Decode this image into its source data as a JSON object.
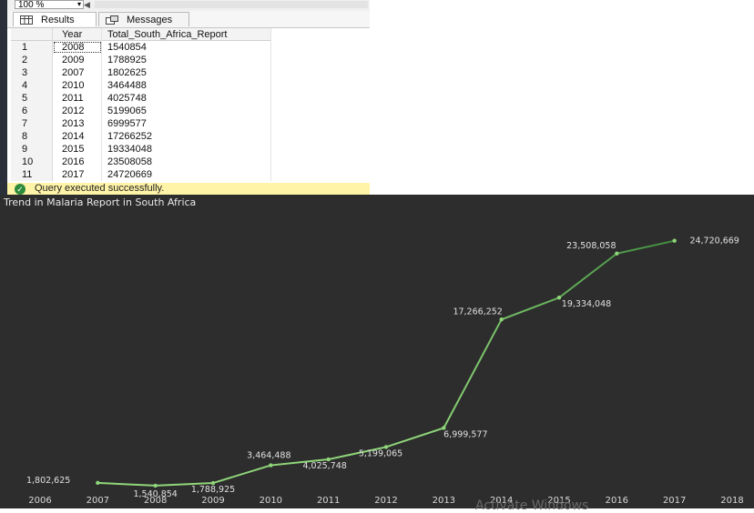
{
  "query_window": {
    "zoom_value": "100 %",
    "tabs": [
      {
        "label": "Results",
        "icon": "grid-icon"
      },
      {
        "label": "Messages",
        "icon": "messages-icon"
      }
    ],
    "grid": {
      "columns": [
        "Year",
        "Total_South_Africa_Report"
      ],
      "rows": [
        {
          "n": "1",
          "year": "2008",
          "total": "1540854"
        },
        {
          "n": "2",
          "year": "2009",
          "total": "1788925"
        },
        {
          "n": "3",
          "year": "2007",
          "total": "1802625"
        },
        {
          "n": "4",
          "year": "2010",
          "total": "3464488"
        },
        {
          "n": "5",
          "year": "2011",
          "total": "4025748"
        },
        {
          "n": "6",
          "year": "2012",
          "total": "5199065"
        },
        {
          "n": "7",
          "year": "2013",
          "total": "6999577"
        },
        {
          "n": "8",
          "year": "2014",
          "total": "17266252"
        },
        {
          "n": "9",
          "year": "2015",
          "total": "19334048"
        },
        {
          "n": "10",
          "year": "2016",
          "total": "23508058"
        },
        {
          "n": "11",
          "year": "2017",
          "total": "24720669"
        }
      ]
    },
    "status": {
      "text": "Query executed successfully.",
      "icon": "check-circle-icon",
      "color": "#fff4a8"
    }
  },
  "chart_data": {
    "type": "line",
    "title": "Trend in Malaria Report in South Africa",
    "x_ticks": [
      "2006",
      "2007",
      "2008",
      "2009",
      "2010",
      "2011",
      "2012",
      "2013",
      "2014",
      "2015",
      "2016",
      "2017",
      "2018"
    ],
    "xlim": [
      2006,
      2018
    ],
    "ylim": [
      500000,
      26500000
    ],
    "series": [
      {
        "x": [
          2007,
          2008,
          2009,
          2010,
          2011,
          2012,
          2013,
          2014,
          2015,
          2016,
          2017
        ],
        "values": [
          1802625,
          1540854,
          1788925,
          3464488,
          4025748,
          5199065,
          6999577,
          17266252,
          19334048,
          23508058,
          24720669
        ],
        "labels": [
          "1,802,625",
          "1,540,854",
          "1,788,925",
          "3,464,488",
          "4,025,748",
          "5,199,065",
          "6,999,577",
          "17,266,252",
          "19,334,048",
          "23,508,058",
          "24,720,669"
        ]
      }
    ],
    "colors": {
      "line_start": "#8fd67a",
      "line_end": "#2e7d32",
      "background": "#2d2d2d",
      "text": "#e0e0e0"
    },
    "grid": false,
    "legend": "none"
  },
  "watermark": "Activate Windows"
}
